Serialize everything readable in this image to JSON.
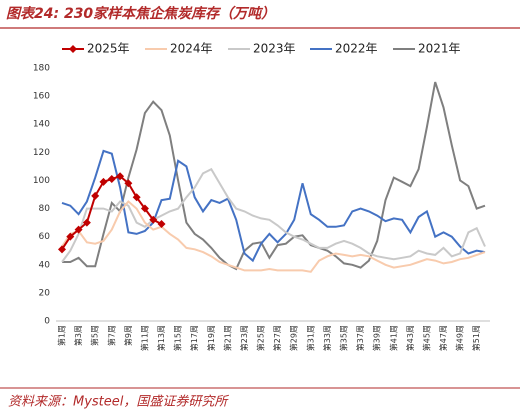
{
  "chart_data": {
    "type": "line",
    "title": "图表24: 230家样本焦企焦炭库存（万吨）",
    "source": "资料来源：Mysteel，国盛证券研究所",
    "categories": [
      "第1周",
      null,
      "第3周",
      null,
      "第5周",
      null,
      "第7周",
      null,
      "第9周",
      null,
      "第11周",
      null,
      "第13周",
      null,
      "第15周",
      null,
      "第17周",
      null,
      "第19周",
      null,
      "第21周",
      null,
      "第23周",
      null,
      "第25周",
      null,
      "第27周",
      null,
      "第29周",
      null,
      "第31周",
      null,
      "第33周",
      null,
      "第35周",
      null,
      "第37周",
      null,
      "第39周",
      null,
      "第41周",
      null,
      "第43周",
      null,
      "第45周",
      null,
      "第47周",
      null,
      "第49周",
      null,
      "第51周",
      null
    ],
    "ylim": [
      0,
      180
    ],
    "yticks": [
      0,
      20,
      40,
      60,
      80,
      100,
      120,
      140,
      160,
      180
    ],
    "grid": false,
    "series": [
      {
        "name": "2025年",
        "color": "#c00000",
        "marker": "diamond",
        "values": [
          51,
          60,
          65,
          70,
          89,
          99,
          101,
          103,
          98,
          88,
          80,
          72,
          69,
          null,
          null,
          null,
          null,
          null,
          null,
          null,
          null,
          null,
          null,
          null,
          null,
          null,
          null,
          null,
          null,
          null,
          null,
          null,
          null,
          null,
          null,
          null,
          null,
          null,
          null,
          null,
          null,
          null,
          null,
          null,
          null,
          null,
          null,
          null,
          null,
          null,
          null,
          null
        ]
      },
      {
        "name": "2024年",
        "color": "#f8cbad",
        "values": [
          53,
          62,
          64,
          56,
          55,
          57,
          65,
          78,
          85,
          80,
          70,
          65,
          67,
          62,
          58,
          52,
          51,
          49,
          46,
          42,
          40,
          38,
          36,
          36,
          36,
          37,
          36,
          36,
          36,
          36,
          35,
          43,
          46,
          48,
          47,
          46,
          47,
          46,
          43,
          40,
          38,
          39,
          40,
          42,
          44,
          43,
          41,
          42,
          44,
          45,
          47,
          49
        ]
      },
      {
        "name": "2023年",
        "color": "#c9c9c9",
        "values": [
          42,
          50,
          62,
          80,
          80,
          80,
          78,
          85,
          82,
          70,
          67,
          72,
          75,
          78,
          80,
          88,
          95,
          105,
          108,
          98,
          88,
          80,
          78,
          75,
          73,
          72,
          68,
          63,
          60,
          58,
          55,
          52,
          52,
          55,
          57,
          55,
          52,
          48,
          46,
          45,
          44,
          45,
          46,
          50,
          48,
          47,
          52,
          46,
          48,
          63,
          66,
          53
        ]
      },
      {
        "name": "2022年",
        "color": "#4472c4",
        "values": [
          84,
          82,
          76,
          85,
          102,
          121,
          119,
          95,
          63,
          62,
          64,
          70,
          86,
          87,
          114,
          110,
          88,
          78,
          86,
          84,
          87,
          72,
          48,
          43,
          55,
          62,
          56,
          62,
          72,
          98,
          76,
          72,
          67,
          67,
          68,
          78,
          80,
          78,
          75,
          71,
          73,
          72,
          63,
          74,
          78,
          60,
          63,
          60,
          53,
          48,
          50,
          49
        ]
      },
      {
        "name": "2021年",
        "color": "#7f7f7f",
        "values": [
          42,
          42,
          45,
          39,
          39,
          62,
          84,
          78,
          102,
          122,
          148,
          156,
          150,
          132,
          100,
          70,
          62,
          58,
          52,
          45,
          40,
          37,
          50,
          55,
          56,
          45,
          54,
          55,
          60,
          61,
          54,
          52,
          50,
          46,
          41,
          40,
          38,
          43,
          57,
          86,
          102,
          99,
          96,
          108,
          138,
          170,
          152,
          125,
          100,
          96,
          80,
          82
        ]
      }
    ]
  }
}
